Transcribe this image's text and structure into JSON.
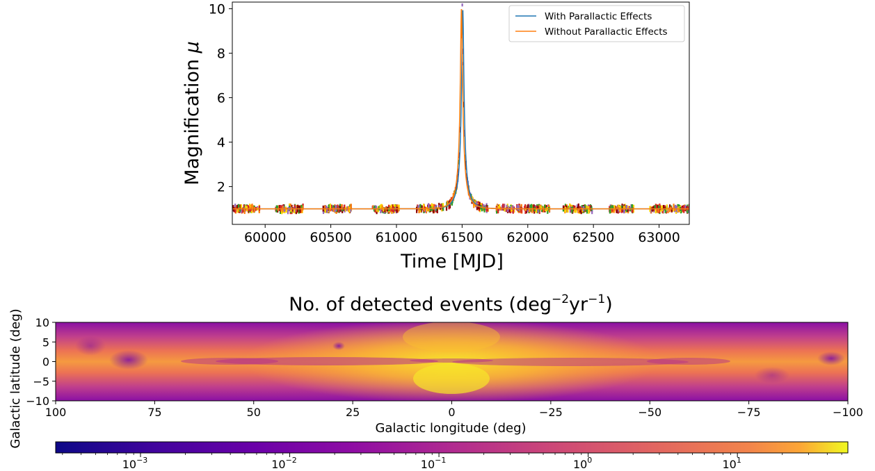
{
  "chart_data": [
    {
      "type": "line",
      "title": "",
      "xlabel": "Time [MJD]",
      "ylabel": "Magnification μ",
      "ylabel_text": "Magnification ",
      "ylabel_symbol": "μ",
      "xlim": [
        59750,
        63230
      ],
      "ylim": [
        0.3,
        10.3
      ],
      "xticks": [
        60000,
        60500,
        61000,
        61500,
        62000,
        62500,
        63000
      ],
      "yticks": [
        2,
        4,
        6,
        8,
        10
      ],
      "grid": false,
      "legend_position": "top-right",
      "model": {
        "t0": 61500,
        "u0": 0.1,
        "tE": 80
      },
      "series": [
        {
          "name": "With Parallactic Effects",
          "color": "#1f77b4",
          "t0": 61505,
          "u0": 0.1005,
          "tE": 80
        },
        {
          "name": "Without Parallactic Effects",
          "color": "#ff7f0e",
          "t0": 61495,
          "u0": 0.1,
          "tE": 80
        }
      ],
      "observations": {
        "seasons": [
          [
            59750,
            59960
          ],
          [
            60080,
            60290
          ],
          [
            60440,
            60660
          ],
          [
            60810,
            61020
          ],
          [
            61150,
            61360
          ],
          [
            61380,
            61700
          ],
          [
            61760,
            61960
          ],
          [
            61970,
            62170
          ],
          [
            62270,
            62490
          ],
          [
            62620,
            62810
          ],
          [
            62930,
            63230
          ]
        ],
        "colors": [
          "#d62728",
          "#2ca02c",
          "#ff7f0e",
          "#9467bd",
          "#ffd700",
          "#8b0000"
        ]
      }
    },
    {
      "type": "heatmap",
      "title": "No. of detected events (deg⁻²yr⁻¹)",
      "title_parts": {
        "prefix": "No. of detected events (deg",
        "sup1": "−2",
        "mid": "yr",
        "sup2": "−1",
        "suffix": ")"
      },
      "xlabel": "Galactic longitude (deg)",
      "ylabel": "Galactic latitude (deg)",
      "xlim": [
        100,
        -100
      ],
      "ylim": [
        -10,
        10
      ],
      "xticks": [
        "100",
        "75",
        "50",
        "25",
        "0",
        "−25",
        "−50",
        "−75",
        "−100"
      ],
      "yticks": [
        "10",
        "5",
        "0",
        "−5",
        "−10"
      ],
      "colorbar": {
        "scale": "log",
        "range": [
          0.00027,
          55
        ],
        "colormap": "plasma",
        "ticks": [
          {
            "base": "10",
            "exp": "−3"
          },
          {
            "base": "10",
            "exp": "−2"
          },
          {
            "base": "10",
            "exp": "−1"
          },
          {
            "base": "10",
            "exp": "0"
          },
          {
            "base": "10",
            "exp": "1"
          }
        ]
      }
    }
  ]
}
